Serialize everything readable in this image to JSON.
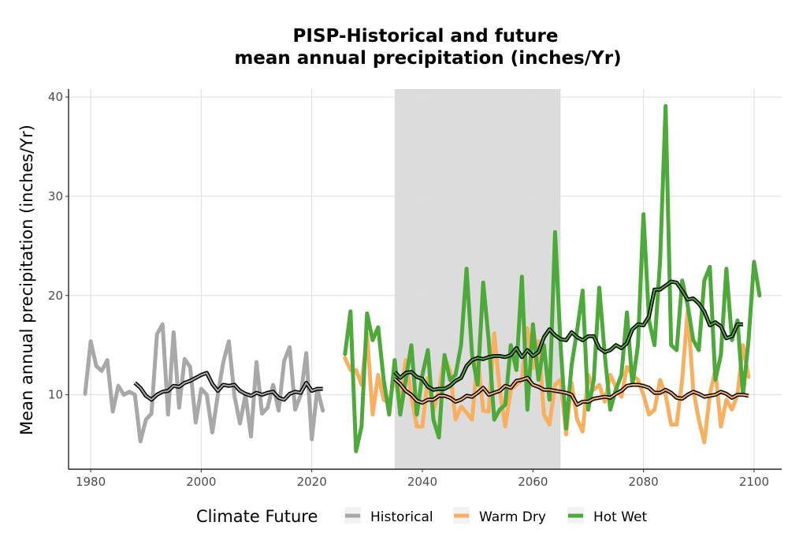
{
  "chart_data": {
    "type": "line",
    "title": "PISP-Historical and future",
    "subtitle": "mean annual precipitation (inches/Yr)",
    "xlabel": "",
    "ylabel": "Mean annual precipitation (inches/Yr)",
    "xlim": [
      1976,
      2105
    ],
    "ylim": [
      2.5,
      40.8
    ],
    "xticks": [
      1980,
      2000,
      2020,
      2040,
      2060,
      2080,
      2100
    ],
    "yticks": [
      10,
      20,
      30,
      40
    ],
    "grid": true,
    "shaded_period": [
      2035,
      2065
    ],
    "shaded_color": "#dcdcdc",
    "legend": {
      "title": "Climate Future",
      "position": "bottom",
      "entries": [
        {
          "label": "Historical",
          "color": "#a8a8a8"
        },
        {
          "label": "Warm Dry",
          "color": "#f8b060"
        },
        {
          "label": "Hot Wet",
          "color": "#4ea93b"
        }
      ]
    },
    "series": [
      {
        "name": "Historical",
        "color": "#a8a8a8",
        "x_start": 1979,
        "values": [
          10.1,
          15.4,
          12.9,
          12.4,
          13.5,
          8.3,
          10.9,
          10.0,
          10.3,
          10.0,
          5.3,
          7.5,
          8.1,
          16.1,
          17.1,
          8.0,
          16.3,
          8.7,
          13.6,
          12.8,
          7.2,
          10.6,
          10.0,
          6.2,
          10.0,
          13.3,
          15.4,
          9.9,
          7.1,
          10.0,
          5.8,
          13.3,
          8.1,
          8.7,
          11.0,
          8.4,
          13.4,
          14.8,
          8.5,
          10.0,
          14.2,
          5.5,
          10.6,
          8.4
        ]
      },
      {
        "name": "Historical 10-yr mean",
        "color": "#000000",
        "x_start": 1988,
        "values": [
          11.2,
          10.7,
          9.9,
          9.5,
          10.0,
          10.3,
          10.4,
          10.9,
          10.8,
          11.2,
          11.4,
          11.7,
          12.0,
          12.2,
          11.1,
          10.4,
          11.0,
          10.9,
          11.0,
          10.4,
          10.1,
          9.9,
          10.2,
          10.0,
          10.2,
          10.3,
          9.7,
          9.5,
          10.1,
          10.3,
          10.2,
          11.2,
          10.4,
          10.6,
          10.6
        ]
      },
      {
        "name": "Warm Dry",
        "color": "#f8b060",
        "x_start": 2026,
        "values": [
          13.7,
          12.5,
          12.5,
          11.0,
          16.1,
          8.0,
          12.0,
          9.5,
          9.2,
          11.8,
          9.2,
          13.5,
          9.8,
          6.8,
          6.8,
          11.7,
          8.4,
          10.4,
          13.8,
          12.4,
          7.5,
          8.8,
          8.2,
          7.5,
          13.8,
          8.4,
          8.3,
          16.2,
          10.5,
          6.8,
          10.5,
          11.0,
          11.5,
          16.7,
          12.7,
          15.4,
          8.0,
          7.0,
          11.0,
          11.5,
          6.0,
          11.2,
          7.5,
          6.3,
          12.0,
          10.5,
          11.0,
          9.3,
          12.0,
          10.8,
          9.8,
          12.8,
          12.0,
          11.5,
          10.0,
          8.0,
          8.5,
          11.5,
          10.0,
          7.0,
          7.0,
          11.5,
          18.5,
          10.5,
          7.5,
          5.2,
          10.0,
          12.5,
          6.8,
          9.5,
          8.5,
          10.0,
          15.0,
          11.8
        ]
      },
      {
        "name": "Warm Dry 10-yr mean",
        "color": "#000000",
        "x_start": 2035,
        "values": [
          11.6,
          11.1,
          10.4,
          10.0,
          9.4,
          9.2,
          9.5,
          9.5,
          9.9,
          9.9,
          9.7,
          9.3,
          9.5,
          9.9,
          9.8,
          10.2,
          10.7,
          10.0,
          10.2,
          10.4,
          10.9,
          10.7,
          11.4,
          11.5,
          11.7,
          11.0,
          10.8,
          10.5,
          10.5,
          10.4,
          10.3,
          10.2,
          10.0,
          9.0,
          9.3,
          9.3,
          9.6,
          9.7,
          9.8,
          9.7,
          10.1,
          10.4,
          10.9,
          11.0,
          11.0,
          10.9,
          10.7,
          10.2,
          10.2,
          10.5,
          10.2,
          9.7,
          9.6,
          10.0,
          10.3,
          10.1,
          9.8,
          9.9,
          10.0,
          10.3,
          10.1,
          9.7,
          10.0,
          10.0,
          9.9
        ]
      },
      {
        "name": "Hot Wet",
        "color": "#4ea93b",
        "x_start": 2026,
        "values": [
          14.1,
          18.4,
          4.3,
          6.8,
          18.2,
          15.5,
          16.8,
          11.5,
          8.0,
          13.5,
          8.0,
          11.5,
          15.0,
          8.0,
          12.0,
          14.5,
          7.5,
          5.7,
          14.0,
          11.5,
          12.0,
          15.0,
          22.7,
          14.0,
          11.0,
          21.3,
          15.5,
          7.5,
          8.5,
          9.0,
          15.0,
          12.5,
          21.9,
          8.5,
          17.1,
          11.5,
          15.0,
          9.5,
          26.4,
          15.0,
          6.6,
          13.0,
          16.5,
          20.5,
          8.5,
          11.5,
          20.8,
          14.0,
          8.5,
          10.5,
          12.0,
          18.3,
          11.0,
          15.0,
          28.2,
          17.5,
          15.0,
          23.5,
          39.1,
          15.0,
          14.5,
          21.5,
          19.0,
          15.5,
          14.5,
          21.5,
          22.9,
          11.5,
          14.0,
          22.7,
          15.5,
          17.5,
          10.0,
          15.5,
          23.4,
          20.0
        ]
      },
      {
        "name": "Hot Wet 10-yr mean",
        "color": "#000000",
        "x_start": 2035,
        "values": [
          12.3,
          11.7,
          12.2,
          12.3,
          11.8,
          11.6,
          10.8,
          10.5,
          10.6,
          10.6,
          10.9,
          11.4,
          11.7,
          12.9,
          13.5,
          13.7,
          13.6,
          13.8,
          13.9,
          13.9,
          13.8,
          14.0,
          14.7,
          13.8,
          14.5,
          13.9,
          14.3,
          15.8,
          16.6,
          16.0,
          15.6,
          15.5,
          16.3,
          15.8,
          15.5,
          15.9,
          15.9,
          14.7,
          14.3,
          14.5,
          15.0,
          14.7,
          15.2,
          16.6,
          17.1,
          17.0,
          17.9,
          20.6,
          20.6,
          21.0,
          21.4,
          21.3,
          20.5,
          19.6,
          19.7,
          19.2,
          18.4,
          17.0,
          17.3,
          16.9,
          15.7,
          15.9,
          17.1,
          17.1
        ]
      }
    ]
  }
}
